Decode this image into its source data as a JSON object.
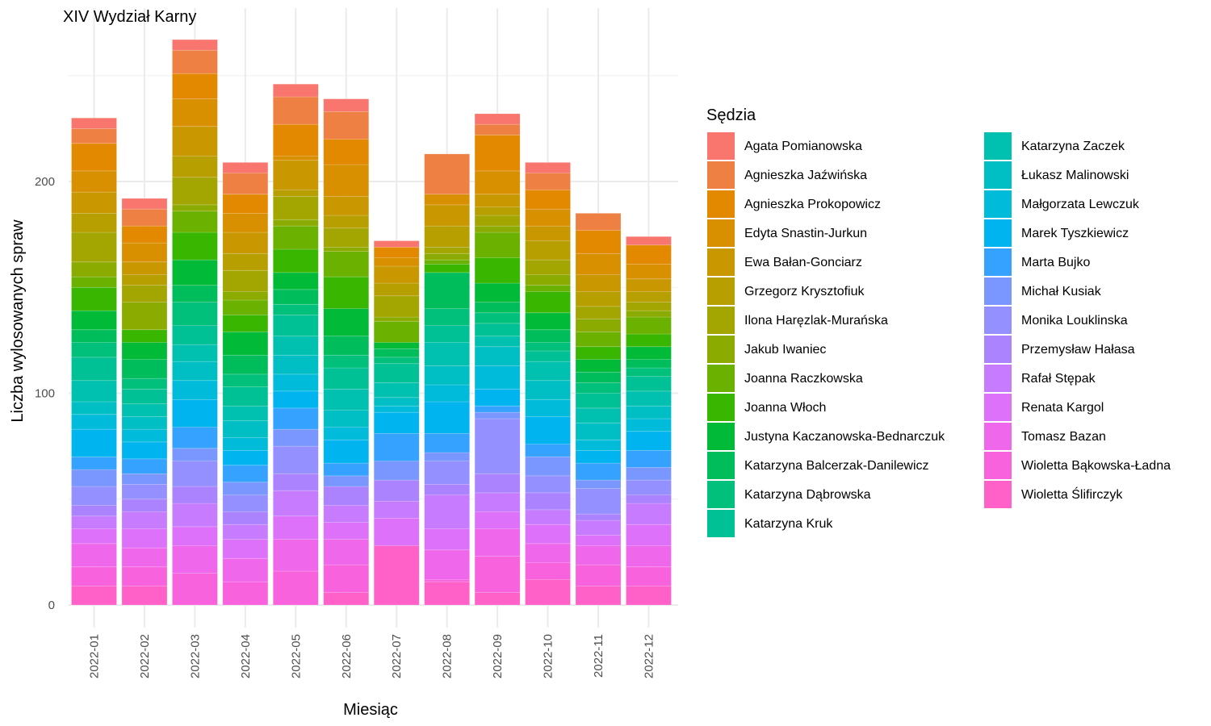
{
  "chart_data": {
    "type": "bar",
    "stacked": true,
    "title": "XIV Wydział Karny",
    "xlabel": "Miesiąc",
    "ylabel": "Liczba wylosowanych spraw",
    "ylim": [
      0,
      268
    ],
    "yticks": [
      0,
      100,
      200
    ],
    "grid": true,
    "legend": {
      "title": "Sędzia",
      "position": "right",
      "columns": 2
    },
    "categories": [
      "2022-01",
      "2022-02",
      "2022-03",
      "2022-04",
      "2022-05",
      "2022-06",
      "2022-07",
      "2022-08",
      "2022-09",
      "2022-10",
      "2022-11",
      "2022-12"
    ],
    "series": [
      {
        "name": "Agata Pomianowska",
        "color": "#F8766D",
        "values": [
          5,
          5,
          5,
          5,
          6,
          6,
          3,
          0,
          5,
          5,
          0,
          4
        ]
      },
      {
        "name": "Agnieszka Jaźwińska",
        "color": "#EE8044",
        "values": [
          7,
          8,
          11,
          10,
          13,
          13,
          0,
          19,
          5,
          8,
          8,
          0
        ]
      },
      {
        "name": "Agnieszka Prokopowicz",
        "color": "#E38900",
        "values": [
          13,
          8,
          12,
          9,
          15,
          12,
          5,
          0,
          17,
          9,
          11,
          9
        ]
      },
      {
        "name": "Edyta Snastin-Jurkun",
        "color": "#D89000",
        "values": [
          10,
          9,
          13,
          9,
          2,
          15,
          4,
          5,
          11,
          8,
          10,
          7
        ]
      },
      {
        "name": "Ewa Bałan-Gonciarz",
        "color": "#C99800",
        "values": [
          10,
          6,
          14,
          10,
          14,
          9,
          8,
          10,
          6,
          7,
          8,
          6
        ]
      },
      {
        "name": "Grzegorz Krysztofiuk",
        "color": "#B79F00",
        "values": [
          9,
          5,
          10,
          8,
          3,
          6,
          6,
          10,
          4,
          9,
          7,
          5
        ]
      },
      {
        "name": "Ilona Haręzlak-Murańska",
        "color": "#A3A500",
        "values": [
          14,
          8,
          13,
          10,
          11,
          9,
          10,
          3,
          5,
          7,
          6,
          4
        ]
      },
      {
        "name": "Jakub Iwaniec",
        "color": "#8BAB00",
        "values": [
          7,
          13,
          3,
          4,
          3,
          2,
          2,
          3,
          3,
          5,
          6,
          3
        ]
      },
      {
        "name": "Joanna Raczkowska",
        "color": "#6BB100",
        "values": [
          5,
          0,
          10,
          7,
          11,
          12,
          10,
          2,
          12,
          3,
          7,
          8
        ]
      },
      {
        "name": "Joanna Włoch",
        "color": "#39B600",
        "values": [
          11,
          6,
          13,
          8,
          11,
          15,
          0,
          4,
          12,
          10,
          6,
          6
        ]
      },
      {
        "name": "Justyna Kaczanowska-Bednarczuk",
        "color": "#00BA38",
        "values": [
          9,
          8,
          12,
          11,
          8,
          13,
          3,
          0,
          9,
          8,
          6,
          6
        ]
      },
      {
        "name": "Katarzyna Balcerzak-Danilewicz",
        "color": "#00BD5C",
        "values": [
          6,
          9,
          8,
          9,
          7,
          9,
          4,
          17,
          5,
          6,
          5,
          4
        ]
      },
      {
        "name": "Katarzyna Dąbrowska",
        "color": "#00C07B",
        "values": [
          7,
          5,
          11,
          6,
          5,
          6,
          3,
          8,
          5,
          4,
          5,
          4
        ]
      },
      {
        "name": "Katarzyna Kruk",
        "color": "#00C196",
        "values": [
          11,
          7,
          9,
          9,
          10,
          10,
          9,
          8,
          6,
          5,
          7,
          7
        ]
      },
      {
        "name": "Katarzyna Zaczek",
        "color": "#00C1AF",
        "values": [
          10,
          6,
          8,
          7,
          9,
          10,
          7,
          11,
          5,
          9,
          7,
          7
        ]
      },
      {
        "name": "Łukasz Malinowski",
        "color": "#00BFC4",
        "values": [
          6,
          6,
          9,
          8,
          9,
          8,
          4,
          9,
          9,
          9,
          8,
          6
        ]
      },
      {
        "name": "Małgorzata Lewczuk",
        "color": "#00BBDA",
        "values": [
          7,
          6,
          9,
          6,
          8,
          6,
          3,
          8,
          11,
          8,
          5,
          6
        ]
      },
      {
        "name": "Marek Tyszkiewicz",
        "color": "#00B4EF",
        "values": [
          13,
          8,
          13,
          7,
          8,
          11,
          10,
          15,
          8,
          13,
          6,
          9
        ]
      },
      {
        "name": "Marta Bujko",
        "color": "#35A2FF",
        "values": [
          6,
          7,
          10,
          8,
          10,
          6,
          13,
          9,
          3,
          6,
          8,
          8
        ]
      },
      {
        "name": "Michał Kusiak",
        "color": "#7997FF",
        "values": [
          8,
          5,
          6,
          6,
          8,
          5,
          9,
          4,
          3,
          9,
          4,
          6
        ]
      },
      {
        "name": "Monika Louklinska",
        "color": "#9590FF",
        "values": [
          9,
          7,
          12,
          8,
          13,
          0,
          0,
          11,
          26,
          8,
          12,
          7
        ]
      },
      {
        "name": "Przemysław Hałasa",
        "color": "#AB82FF",
        "values": [
          5,
          6,
          8,
          6,
          8,
          9,
          10,
          5,
          9,
          8,
          3,
          4
        ]
      },
      {
        "name": "Rafał Stępak",
        "color": "#C77CFF",
        "values": [
          6,
          8,
          11,
          7,
          12,
          8,
          8,
          16,
          9,
          7,
          7,
          10
        ]
      },
      {
        "name": "Renata Kargol",
        "color": "#DE71F9",
        "values": [
          7,
          9,
          9,
          9,
          11,
          8,
          13,
          10,
          8,
          9,
          5,
          10
        ]
      },
      {
        "name": "Tomasz Bazan",
        "color": "#EF67EB",
        "values": [
          11,
          9,
          13,
          11,
          15,
          12,
          0,
          14,
          13,
          9,
          9,
          10
        ]
      },
      {
        "name": "Wioletta Bąkowska-Ładna",
        "color": "#F962DD",
        "values": [
          9,
          9,
          15,
          11,
          16,
          13,
          0,
          1,
          17,
          8,
          10,
          9
        ]
      },
      {
        "name": "Wioletta Ślifirczyk",
        "color": "#FF61C9",
        "values": [
          9,
          9,
          0,
          0,
          0,
          6,
          28,
          11,
          6,
          12,
          9,
          9
        ]
      }
    ]
  }
}
